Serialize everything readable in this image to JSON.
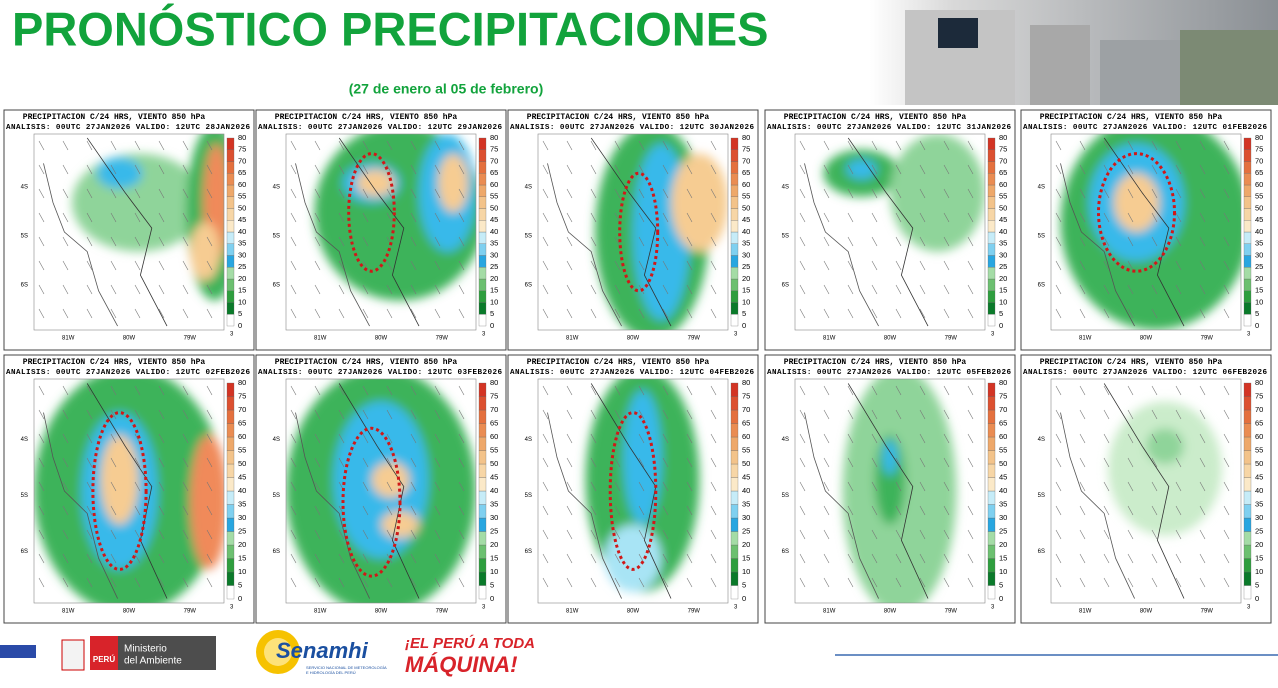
{
  "header": {
    "title": "PRONÓSTICO PRECIPITACIONES",
    "subtitle": "(27 de enero al 05 de febrero)"
  },
  "panels": [
    {
      "title": "PRECIPITACION C/24 HRS, VIENTO 850 hPa",
      "analysis": "ANALISIS: 00UTC 27JAN2026 VALIDO: 12UTC 28JAN2026"
    },
    {
      "title": "PRECIPITACION C/24 HRS, VIENTO 850 hPa",
      "analysis": "ANALISIS: 00UTC 27JAN2026 VALIDO: 12UTC 29JAN2026"
    },
    {
      "title": "PRECIPITACION C/24 HRS, VIENTO 850 hPa",
      "analysis": "ANALISIS: 00UTC 27JAN2026 VALIDO: 12UTC 30JAN2026"
    },
    {
      "title": "PRECIPITACION C/24 HRS, VIENTO 850 hPa",
      "analysis": "ANALISIS: 00UTC 27JAN2026 VALIDO: 12UTC 31JAN2026"
    },
    {
      "title": "PRECIPITACION C/24 HRS, VIENTO 850 hPa",
      "analysis": "ANALISIS: 00UTC 27JAN2026 VALIDO: 12UTC 01FEB2026"
    },
    {
      "title": "PRECIPITACION C/24 HRS, VIENTO 850 hPa",
      "analysis": "ANALISIS: 00UTC 27JAN2026 VALIDO: 12UTC 02FEB2026"
    },
    {
      "title": "PRECIPITACION C/24 HRS, VIENTO 850 hPa",
      "analysis": "ANALISIS: 00UTC 27JAN2026 VALIDO: 12UTC 03FEB2026"
    },
    {
      "title": "PRECIPITACION C/24 HRS, VIENTO 850 hPa",
      "analysis": "ANALISIS: 00UTC 27JAN2026 VALIDO: 12UTC 04FEB2026"
    },
    {
      "title": "PRECIPITACION C/24 HRS, VIENTO 850 hPa",
      "analysis": "ANALISIS: 00UTC 27JAN2026 VALIDO: 12UTC 05FEB2026"
    },
    {
      "title": "PRECIPITACION C/24 HRS, VIENTO 850 hPa",
      "analysis": "ANALISIS: 00UTC 27JAN2026 VALIDO: 12UTC 06FEB2026"
    }
  ],
  "map_axes": {
    "lat_labels": [
      "4S",
      "5S",
      "6S"
    ],
    "lon_labels": [
      "81W",
      "80W",
      "79W"
    ]
  },
  "colorbar": {
    "levels": [
      0,
      5,
      10,
      15,
      20,
      25,
      30,
      35,
      40,
      45,
      50,
      55,
      60,
      65,
      70,
      75,
      80
    ],
    "note": "3"
  },
  "footer": {
    "peru": "PERÚ",
    "ministry_line1": "Ministerio",
    "ministry_line2": "del Ambiente",
    "senamhi": "Senamhi",
    "senamhi_sub1": "SERVICIO NACIONAL DE METEOROLOGÍA",
    "senamhi_sub2": "E HIDROLOGÍA DEL PERÚ",
    "slogan_line1": "¡EL PERÚ A TODA",
    "slogan_line2": "MÁQUINA!"
  }
}
